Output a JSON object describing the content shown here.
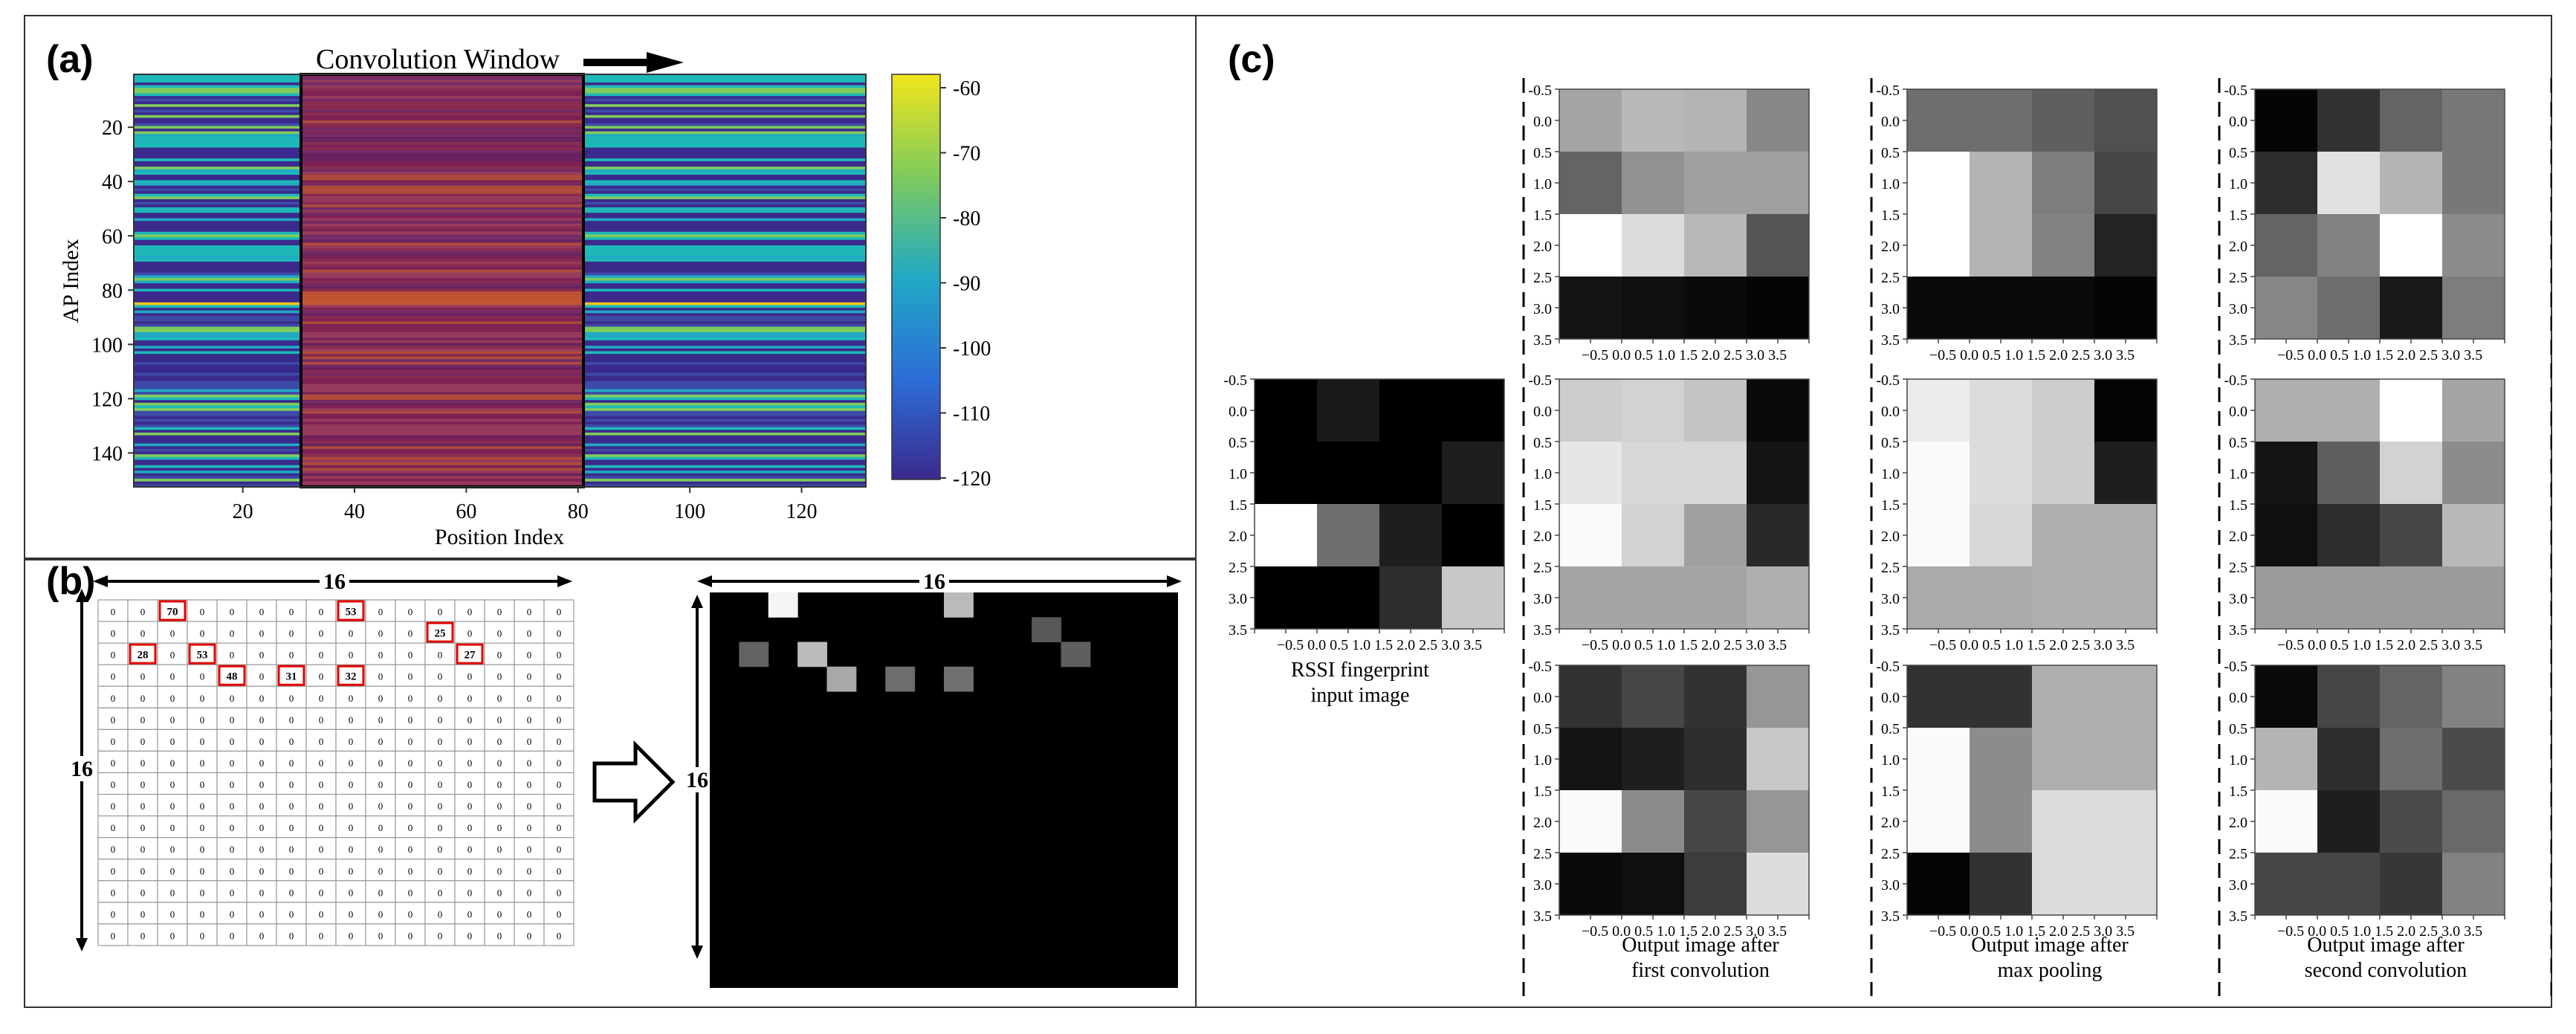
{
  "panel_labels": {
    "a": "(a)",
    "b": "(b)",
    "c": "(c)"
  },
  "panel_a": {
    "window_label": "Convolution Window",
    "xlabel": "Position Index",
    "ylabel": "AP Index",
    "x_ticks": [
      "20",
      "40",
      "60",
      "80",
      "100",
      "120"
    ],
    "y_ticks": [
      "20",
      "40",
      "60",
      "80",
      "100",
      "120",
      "140"
    ],
    "colorbar_ticks": [
      "-60",
      "-70",
      "-80",
      "-90",
      "-100",
      "-110",
      "-120"
    ],
    "colors": {
      "low": "#3b2a8c",
      "mid": "#21a9c4",
      "high": "#f2e51d"
    }
  },
  "panel_b": {
    "dim_label": "16",
    "grid_size": 16,
    "nonzero": [
      {
        "row": 0,
        "col": 2,
        "value": 70
      },
      {
        "row": 0,
        "col": 8,
        "value": 53
      },
      {
        "row": 1,
        "col": 11,
        "value": 25
      },
      {
        "row": 2,
        "col": 1,
        "value": 28
      },
      {
        "row": 2,
        "col": 3,
        "value": 53
      },
      {
        "row": 2,
        "col": 12,
        "value": 27
      },
      {
        "row": 3,
        "col": 4,
        "value": 48
      },
      {
        "row": 3,
        "col": 6,
        "value": 31
      },
      {
        "row": 3,
        "col": 8,
        "value": 32
      }
    ],
    "zero_value": "0"
  },
  "panel_c": {
    "axis_ticks": [
      "-0.5",
      "0.0",
      "0.5",
      "1.0",
      "1.5",
      "2.0",
      "2.5",
      "3.0",
      "3.5"
    ],
    "x_ticks_text": "−0.5 0.0  0.5  1.0  1.5  2.0  2.5  3.0  3.5",
    "input_caption": [
      "RSSI fingerprint",
      "input image"
    ],
    "captions": [
      [
        "Output image after",
        "first convolution"
      ],
      [
        "Output image after",
        "max pooling"
      ],
      [
        "Output image after",
        "second convolution"
      ]
    ],
    "input_image": [
      [
        0,
        25,
        0,
        0
      ],
      [
        0,
        0,
        0,
        30
      ],
      [
        255,
        110,
        30,
        0
      ],
      [
        0,
        0,
        45,
        200
      ]
    ],
    "images": [
      [
        [
          [
            165,
            185,
            180,
            135
          ],
          [
            100,
            145,
            160,
            160
          ],
          [
            255,
            220,
            185,
            85
          ],
          [
            20,
            15,
            10,
            5
          ]
        ],
        [
          [
            205,
            210,
            195,
            10
          ],
          [
            230,
            215,
            215,
            20
          ],
          [
            250,
            210,
            160,
            40
          ],
          [
            165,
            165,
            165,
            175
          ]
        ],
        [
          [
            50,
            70,
            50,
            150
          ],
          [
            20,
            30,
            45,
            200
          ],
          [
            250,
            140,
            70,
            150
          ],
          [
            10,
            15,
            60,
            220
          ]
        ]
      ],
      [
        [
          [
            110,
            110,
            95,
            80
          ],
          [
            255,
            180,
            125,
            70
          ],
          [
            255,
            180,
            130,
            35
          ],
          [
            10,
            10,
            10,
            5
          ]
        ],
        [
          [
            235,
            220,
            205,
            5
          ],
          [
            250,
            220,
            205,
            30
          ],
          [
            250,
            215,
            175,
            175
          ],
          [
            170,
            170,
            175,
            175
          ]
        ],
        [
          [
            50,
            50,
            175,
            175
          ],
          [
            250,
            140,
            175,
            175
          ],
          [
            250,
            140,
            220,
            220
          ],
          [
            5,
            50,
            220,
            220
          ]
        ]
      ],
      [
        [
          [
            5,
            50,
            100,
            120
          ],
          [
            45,
            225,
            180,
            120
          ],
          [
            100,
            130,
            255,
            140
          ],
          [
            135,
            110,
            25,
            125
          ]
        ],
        [
          [
            175,
            175,
            255,
            165
          ],
          [
            20,
            95,
            210,
            140
          ],
          [
            15,
            45,
            70,
            185
          ],
          [
            155,
            155,
            155,
            155
          ]
        ],
        [
          [
            10,
            70,
            100,
            130
          ],
          [
            180,
            45,
            110,
            75
          ],
          [
            250,
            30,
            75,
            105
          ],
          [
            70,
            70,
            55,
            130
          ]
        ]
      ]
    ]
  }
}
